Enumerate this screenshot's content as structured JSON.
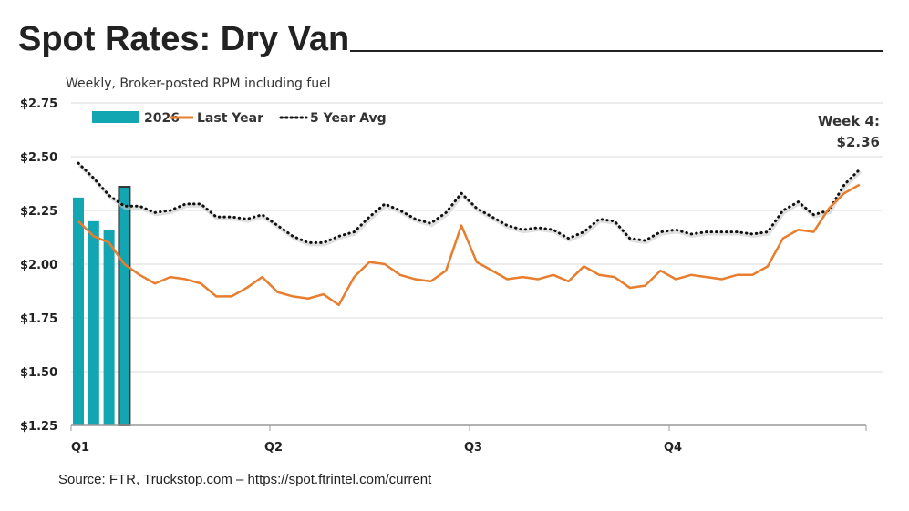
{
  "title": "Spot Rates: Dry Van",
  "subtitle": "Weekly, Broker-posted RPM including fuel",
  "source": "Source: FTR, Truckstop.com – https://spot.ftrintel.com/current",
  "chart_data": {
    "type": "bar+line",
    "ylim": [
      1.25,
      2.75
    ],
    "yticks": [
      "$2.75",
      "$2.50",
      "$2.25",
      "$2.00",
      "$1.75",
      "$1.50",
      "$1.25"
    ],
    "ytick_values": [
      2.75,
      2.5,
      2.25,
      2.0,
      1.75,
      1.5,
      1.25
    ],
    "xticks": [
      "Q1",
      "Q2",
      "Q3",
      "Q4"
    ],
    "grid": true,
    "legend_position": "top-left",
    "colors": {
      "bars": "#12A5B2",
      "last_year": "#E87D2E",
      "avg": "#111111",
      "highlight_border": "#333333"
    },
    "annotation": {
      "line1": "Week 4:",
      "line2": "$2.36"
    },
    "series": [
      {
        "name": "2026",
        "type": "bar",
        "values": [
          2.31,
          2.2,
          2.16,
          2.36
        ]
      },
      {
        "name": "Last Year",
        "type": "line",
        "values": [
          2.2,
          2.13,
          2.1,
          2.0,
          1.95,
          1.91,
          1.94,
          1.93,
          1.91,
          1.85,
          1.85,
          1.89,
          1.94,
          1.87,
          1.85,
          1.84,
          1.86,
          1.81,
          1.94,
          2.01,
          2.0,
          1.95,
          1.93,
          1.92,
          1.97,
          2.18,
          2.01,
          1.97,
          1.93,
          1.94,
          1.93,
          1.95,
          1.92,
          1.99,
          1.95,
          1.94,
          1.89,
          1.9,
          1.97,
          1.93,
          1.95,
          1.94,
          1.93,
          1.95,
          1.95,
          1.99,
          2.12,
          2.16,
          2.15,
          2.26,
          2.33,
          2.37
        ]
      },
      {
        "name": "5 Year Avg",
        "type": "line",
        "values": [
          2.47,
          2.4,
          2.32,
          2.27,
          2.27,
          2.24,
          2.25,
          2.28,
          2.28,
          2.22,
          2.22,
          2.21,
          2.23,
          2.18,
          2.13,
          2.1,
          2.1,
          2.13,
          2.15,
          2.22,
          2.28,
          2.25,
          2.21,
          2.19,
          2.24,
          2.33,
          2.26,
          2.22,
          2.18,
          2.16,
          2.17,
          2.16,
          2.12,
          2.15,
          2.21,
          2.2,
          2.12,
          2.11,
          2.15,
          2.16,
          2.14,
          2.15,
          2.15,
          2.15,
          2.14,
          2.15,
          2.25,
          2.29,
          2.23,
          2.25,
          2.37,
          2.44
        ]
      }
    ]
  }
}
